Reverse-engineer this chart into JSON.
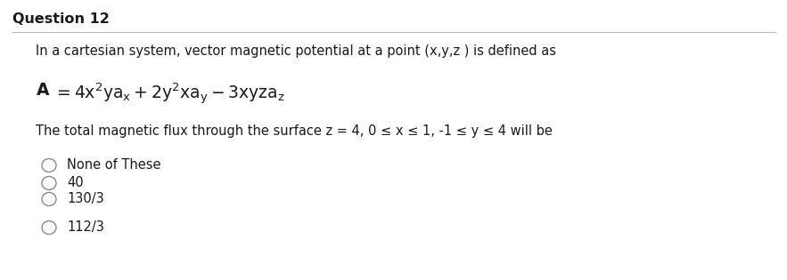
{
  "title": "Question 12",
  "line1": "In a cartesian system, vector magnetic potential at a point (x,y,z ) is defined as",
  "line3": "The total magnetic flux through the surface z = 4, 0 ≤ x ≤ 1, -1 ≤ y ≤ 4 will be",
  "options": [
    "None of These",
    "40",
    "130/3",
    "112/3"
  ],
  "bg_color": "#ffffff",
  "text_color": "#1a1a1a",
  "title_fontsize": 11.5,
  "body_fontsize": 10.5,
  "formula_fontsize": 13.5,
  "option_fontsize": 10.5
}
